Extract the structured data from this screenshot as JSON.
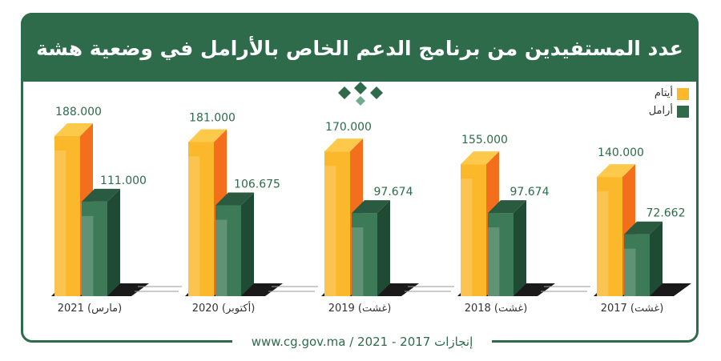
{
  "header": {
    "title": "عدد المستفيدين من برنامج الدعم الخاص بالأرامل في وضعية هشة"
  },
  "footer": {
    "text": "www.cg.gov.ma / 2021 - 2017 إنجازات"
  },
  "colors": {
    "brand_green": "#2d6b4a",
    "orphans_front": "#fbb82a",
    "orphans_side": "#f36f1c",
    "widows_front": "#3d7a58",
    "widows_side": "#1f4a33"
  },
  "chart_data": {
    "type": "bar",
    "categories": [
      "2021 (مارس)",
      "2020 (أكتوبر)",
      "2019 (غشت)",
      "2018 (غشت)",
      "2017 (غشت)"
    ],
    "series": [
      {
        "name": "أيتام",
        "values": [
          188000,
          181000,
          170000,
          155000,
          140000
        ],
        "labels": [
          "188.000",
          "181.000",
          "170.000",
          "155.000",
          "140.000"
        ]
      },
      {
        "name": "أرامل",
        "values": [
          111000,
          106675,
          97674,
          97674,
          72662
        ],
        "labels": [
          "111.000",
          "106.675",
          "97.674",
          "97.674",
          "72.662"
        ]
      }
    ],
    "title": "عدد المستفيدين من برنامج الدعم الخاص بالأرامل في وضعية هشة",
    "legend": "top-right"
  }
}
